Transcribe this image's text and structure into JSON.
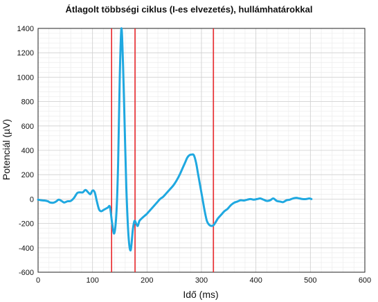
{
  "chart_data": {
    "type": "line",
    "title": "Átlagolt többségi ciklus (I-es elvezetés), hullámhatárokkal",
    "xlabel": "Idő (ms)",
    "ylabel": "Potenciál (µV)",
    "xlim": [
      0,
      600
    ],
    "ylim": [
      -600,
      1400
    ],
    "xticks": [
      0,
      100,
      200,
      300,
      400,
      500,
      600
    ],
    "yticks": [
      -600,
      -400,
      -200,
      0,
      200,
      400,
      600,
      800,
      1000,
      1200,
      1400
    ],
    "grid": true,
    "colors": {
      "series": "#1fa8e0",
      "boundaries": "#e8262a",
      "grid_major": "#cfcfcf",
      "grid_minor": "#ececec",
      "axes": "#222222"
    },
    "series": [
      {
        "x": [
          0,
          6,
          12,
          18,
          22,
          28,
          33,
          38,
          43,
          48,
          54,
          60,
          66,
          72,
          77,
          82,
          87,
          92,
          96,
          100,
          104,
          108,
          112,
          116,
          120,
          124,
          128,
          132,
          136,
          140,
          144,
          147,
          150,
          153,
          156,
          159,
          162,
          166,
          170,
          174,
          177,
          180,
          183,
          186,
          190,
          195,
          200,
          206,
          212,
          218,
          224,
          230,
          236,
          242,
          248,
          254,
          260,
          266,
          270,
          274,
          278,
          282,
          286,
          290,
          294,
          298,
          302,
          306,
          310,
          314,
          318,
          322,
          326,
          330,
          336,
          342,
          348,
          354,
          360,
          366,
          372,
          378,
          384,
          390,
          396,
          402,
          408,
          414,
          420,
          426,
          432,
          438,
          444,
          450,
          456,
          462,
          468,
          474,
          480,
          486,
          492,
          498,
          502
        ],
        "y": [
          -5,
          -10,
          -12,
          -18,
          -28,
          -30,
          -20,
          -5,
          -15,
          -28,
          -18,
          -15,
          10,
          50,
          55,
          55,
          75,
          55,
          40,
          70,
          55,
          -20,
          -85,
          -100,
          -90,
          -80,
          -70,
          -65,
          -200,
          -280,
          -100,
          300,
          1000,
          1400,
          1100,
          600,
          100,
          -300,
          -420,
          -250,
          -180,
          -200,
          -220,
          -180,
          -160,
          -140,
          -120,
          -90,
          -60,
          -30,
          0,
          20,
          50,
          80,
          110,
          150,
          200,
          260,
          300,
          340,
          360,
          365,
          360,
          300,
          200,
          100,
          0,
          -100,
          -180,
          -210,
          -220,
          -215,
          -190,
          -160,
          -130,
          -100,
          -80,
          -50,
          -30,
          -20,
          -10,
          -12,
          -5,
          0,
          -5,
          0,
          5,
          -5,
          -15,
          -10,
          5,
          -15,
          -20,
          -25,
          -10,
          -5,
          5,
          10,
          5,
          0,
          0,
          5,
          0
        ]
      }
    ],
    "boundaries": [
      135,
      178,
      322
    ]
  }
}
